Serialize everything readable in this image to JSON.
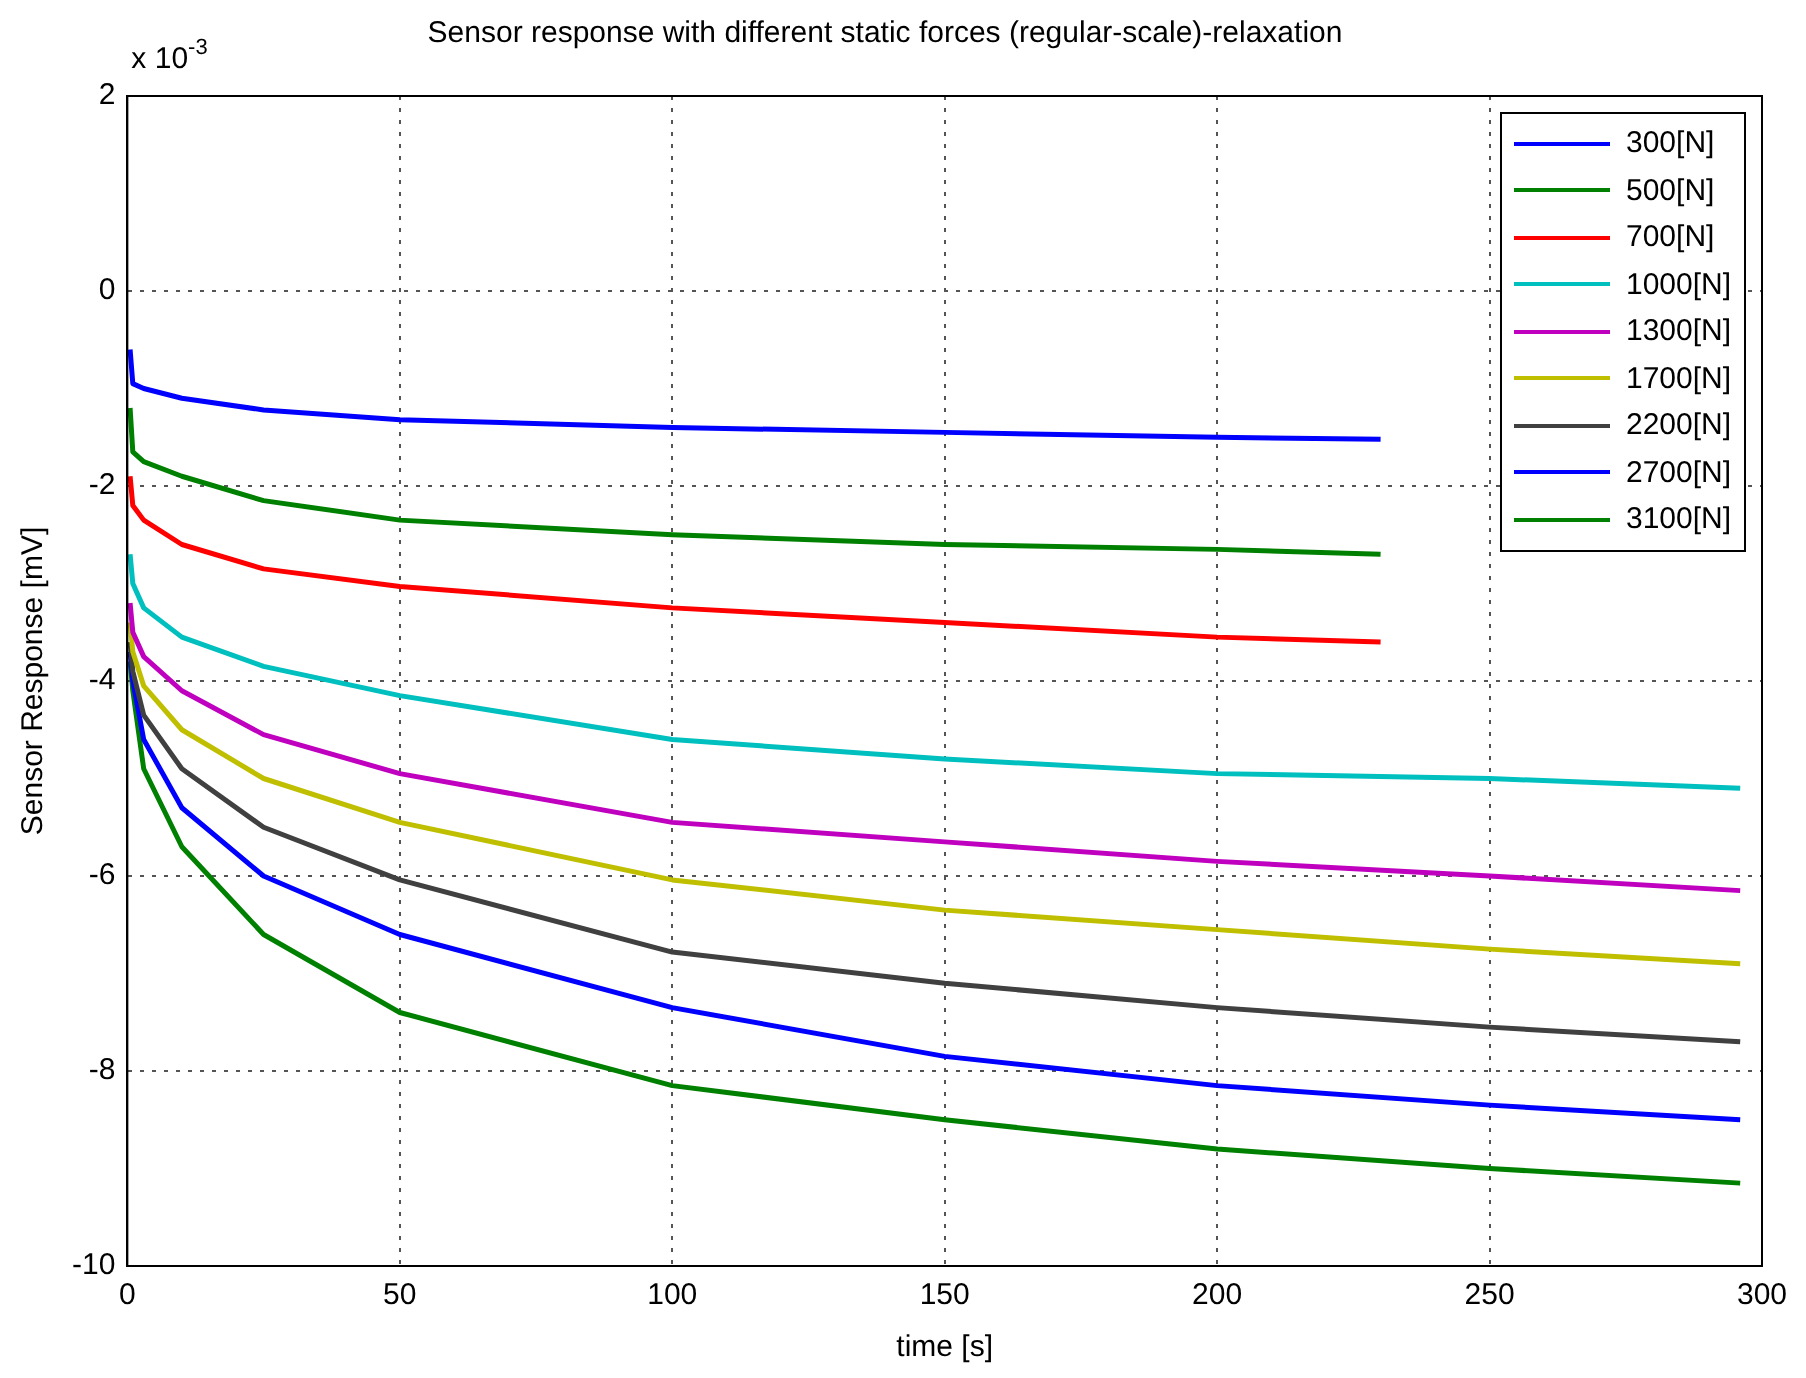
{
  "chart_data": {
    "type": "line",
    "title": "Sensor response with different static forces (regular-scale)-relaxation",
    "xlabel": "time [s]",
    "ylabel": "Sensor Response [mV]",
    "annotations": [
      "x 10$^{-3}$"
    ],
    "xlim": [
      0,
      300
    ],
    "xticks": [
      0,
      50,
      100,
      150,
      200,
      250,
      300
    ],
    "ylim": [
      -10,
      2
    ],
    "yticks": [
      -10,
      -8,
      -6,
      -4,
      -2,
      0,
      2
    ],
    "grid": true,
    "legend": "top right",
    "marker": "none",
    "line_style": "solid",
    "series": [
      {
        "name": "300[N]",
        "color": "#0000ff",
        "x": [
          0.5,
          1,
          3,
          10,
          25,
          50,
          100,
          150,
          200,
          230
        ],
        "values": [
          -0.6,
          -0.95,
          -1.0,
          -1.1,
          -1.22,
          -1.32,
          -1.4,
          -1.45,
          -1.5,
          -1.52
        ]
      },
      {
        "name": "500[N]",
        "color": "#008000",
        "x": [
          0.5,
          1,
          3,
          10,
          25,
          50,
          100,
          150,
          200,
          230
        ],
        "values": [
          -1.2,
          -1.65,
          -1.75,
          -1.9,
          -2.15,
          -2.35,
          -2.5,
          -2.6,
          -2.65,
          -2.7
        ]
      },
      {
        "name": "700[N]",
        "color": "#ff0000",
        "x": [
          0.5,
          1,
          3,
          10,
          25,
          50,
          100,
          150,
          200,
          230
        ],
        "values": [
          -1.9,
          -2.2,
          -2.35,
          -2.6,
          -2.85,
          -3.03,
          -3.25,
          -3.4,
          -3.55,
          -3.6
        ]
      },
      {
        "name": "1000[N]",
        "color": "#00bfbf",
        "x": [
          0.5,
          1,
          3,
          10,
          25,
          50,
          100,
          150,
          200,
          250,
          296
        ],
        "values": [
          -2.7,
          -3.0,
          -3.25,
          -3.55,
          -3.85,
          -4.15,
          -4.6,
          -4.8,
          -4.95,
          -5.0,
          -5.1
        ]
      },
      {
        "name": "1300[N]",
        "color": "#bf00bf",
        "x": [
          0.5,
          1,
          3,
          10,
          25,
          50,
          100,
          150,
          200,
          250,
          296
        ],
        "values": [
          -3.2,
          -3.5,
          -3.75,
          -4.1,
          -4.55,
          -4.95,
          -5.45,
          -5.65,
          -5.85,
          -6.0,
          -6.15
        ]
      },
      {
        "name": "1700[N]",
        "color": "#bfbf00",
        "x": [
          0.5,
          1,
          3,
          10,
          25,
          50,
          100,
          150,
          200,
          250,
          296
        ],
        "values": [
          -3.4,
          -3.7,
          -4.05,
          -4.5,
          -5.0,
          -5.45,
          -6.04,
          -6.35,
          -6.55,
          -6.75,
          -6.9
        ]
      },
      {
        "name": "2200[N]",
        "color": "#404040",
        "x": [
          0.5,
          1,
          3,
          10,
          25,
          50,
          100,
          150,
          200,
          250,
          296
        ],
        "values": [
          -3.6,
          -3.9,
          -4.35,
          -4.9,
          -5.5,
          -6.04,
          -6.78,
          -7.1,
          -7.35,
          -7.55,
          -7.7
        ]
      },
      {
        "name": "2700[N]",
        "color": "#0000ff",
        "x": [
          0.5,
          1,
          3,
          10,
          25,
          50,
          100,
          150,
          200,
          250,
          296
        ],
        "values": [
          -3.7,
          -4.0,
          -4.6,
          -5.3,
          -6.0,
          -6.6,
          -7.35,
          -7.85,
          -8.15,
          -8.35,
          -8.5
        ]
      },
      {
        "name": "3100[N]",
        "color": "#008000",
        "x": [
          0.5,
          1,
          3,
          10,
          25,
          50,
          100,
          150,
          200,
          250,
          296
        ],
        "values": [
          -3.8,
          -4.1,
          -4.9,
          -5.7,
          -6.6,
          -7.4,
          -8.15,
          -8.5,
          -8.8,
          -9.0,
          -9.15
        ]
      }
    ]
  }
}
